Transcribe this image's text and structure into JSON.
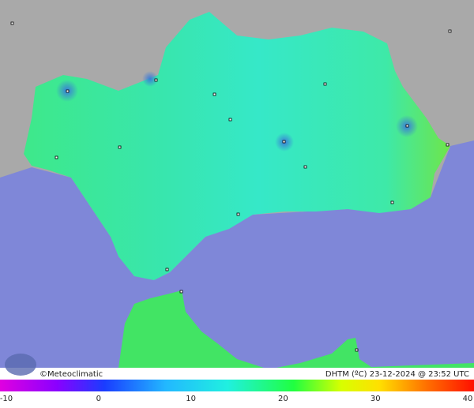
{
  "footer": {
    "credit": "©Meteoclimatic",
    "caption": "DHTM (ºC) 23-12-2024 @ 23:52 UTC"
  },
  "legend": {
    "ticks": [
      -10,
      0,
      10,
      20,
      30,
      40
    ]
  }
}
